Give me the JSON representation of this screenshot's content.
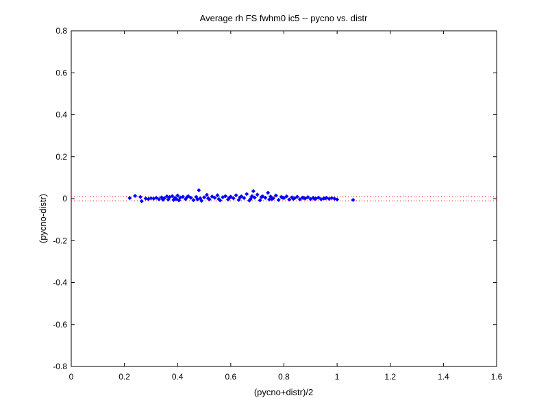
{
  "chart_data": {
    "type": "scatter",
    "title": "Average rh FS fwhm0 ic5 -- pycno vs. distr",
    "xlabel": "(pycno+distr)/2",
    "ylabel": "(pycno-distr)",
    "xlim": [
      0,
      1.6
    ],
    "ylim": [
      -0.8,
      0.8
    ],
    "xticks": [
      0,
      0.2,
      0.4,
      0.6,
      0.8,
      1,
      1.2,
      1.4,
      1.6
    ],
    "xtick_labels": [
      "0",
      "0.2",
      "0.4",
      "0.6",
      "0.8",
      "1",
      "1.2",
      "1.4",
      "1.6"
    ],
    "yticks": [
      -0.8,
      -0.6,
      -0.4,
      -0.2,
      0,
      0.2,
      0.4,
      0.6,
      0.8
    ],
    "ytick_labels": [
      "-0.8",
      "-0.6",
      "-0.4",
      "-0.2",
      "0",
      "0.2",
      "0.4",
      "0.6",
      "0.8"
    ],
    "grid": false,
    "reference_lines": [
      {
        "y": 0.01,
        "style": "dotted",
        "color": "#ff0000"
      },
      {
        "y": -0.01,
        "style": "dotted",
        "color": "#ff0000"
      }
    ],
    "series": [
      {
        "color": "#0000ff",
        "marker": "diamond",
        "points": [
          [
            0.22,
            0.003
          ],
          [
            0.24,
            0.013
          ],
          [
            0.26,
            0.008
          ],
          [
            0.265,
            -0.012
          ],
          [
            0.28,
            0.001
          ],
          [
            0.29,
            -0.002
          ],
          [
            0.3,
            0.002
          ],
          [
            0.31,
            0.0
          ],
          [
            0.32,
            0.004
          ],
          [
            0.33,
            -0.003
          ],
          [
            0.34,
            0.006
          ],
          [
            0.35,
            0.002
          ],
          [
            0.36,
            0.011
          ],
          [
            0.365,
            -0.004
          ],
          [
            0.37,
            0.007
          ],
          [
            0.38,
            0.012
          ],
          [
            0.385,
            -0.006
          ],
          [
            0.39,
            0.003
          ],
          [
            0.4,
            0.015
          ],
          [
            0.405,
            -0.008
          ],
          [
            0.41,
            0.005
          ],
          [
            0.42,
            0.009
          ],
          [
            0.43,
            -0.002
          ],
          [
            0.44,
            0.012
          ],
          [
            0.45,
            0.004
          ],
          [
            0.46,
            -0.007
          ],
          [
            0.47,
            0.008
          ],
          [
            0.48,
            0.04
          ],
          [
            0.485,
            0.002
          ],
          [
            0.49,
            -0.01
          ],
          [
            0.5,
            0.006
          ],
          [
            0.51,
            0.018
          ],
          [
            0.52,
            -0.003
          ],
          [
            0.53,
            0.01
          ],
          [
            0.54,
            0.004
          ],
          [
            0.55,
            0.016
          ],
          [
            0.56,
            -0.008
          ],
          [
            0.57,
            0.007
          ],
          [
            0.58,
            0.012
          ],
          [
            0.59,
            -0.004
          ],
          [
            0.6,
            0.009
          ],
          [
            0.61,
            0.002
          ],
          [
            0.62,
            0.016
          ],
          [
            0.63,
            -0.006
          ],
          [
            0.64,
            0.011
          ],
          [
            0.65,
            0.003
          ],
          [
            0.66,
            0.022
          ],
          [
            0.67,
            -0.009
          ],
          [
            0.68,
            0.012
          ],
          [
            0.685,
            0.036
          ],
          [
            0.69,
            0.005
          ],
          [
            0.7,
            0.019
          ],
          [
            0.71,
            -0.008
          ],
          [
            0.72,
            0.011
          ],
          [
            0.73,
            0.004
          ],
          [
            0.74,
            0.028
          ],
          [
            0.745,
            -0.004
          ],
          [
            0.75,
            0.01
          ],
          [
            0.76,
            0.002
          ],
          [
            0.77,
            0.015
          ],
          [
            0.78,
            -0.006
          ],
          [
            0.79,
            0.008
          ],
          [
            0.8,
            0.003
          ],
          [
            0.81,
            0.011
          ],
          [
            0.82,
            -0.004
          ],
          [
            0.83,
            0.006
          ],
          [
            0.84,
            0.002
          ],
          [
            0.85,
            0.009
          ],
          [
            0.86,
            -0.003
          ],
          [
            0.87,
            0.005
          ],
          [
            0.88,
            0.001
          ],
          [
            0.89,
            0.007
          ],
          [
            0.9,
            -0.002
          ],
          [
            0.91,
            0.004
          ],
          [
            0.92,
            0.0
          ],
          [
            0.93,
            0.005
          ],
          [
            0.94,
            -0.003
          ],
          [
            0.95,
            0.002
          ],
          [
            0.96,
            0.004
          ],
          [
            0.97,
            -0.001
          ],
          [
            0.98,
            0.003
          ],
          [
            0.99,
            0.0
          ],
          [
            1.0,
            -0.004
          ],
          [
            1.06,
            -0.006
          ],
          [
            0.345,
            -0.005
          ],
          [
            0.395,
            -0.001
          ],
          [
            0.435,
            0.006
          ],
          [
            0.475,
            -0.004
          ],
          [
            0.515,
            0.001
          ],
          [
            0.555,
            -0.002
          ],
          [
            0.595,
            0.005
          ],
          [
            0.635,
            0.006
          ],
          [
            0.675,
            -0.001
          ],
          [
            0.715,
            0.007
          ],
          [
            0.755,
            -0.002
          ],
          [
            0.795,
            0.005
          ],
          [
            0.835,
            -0.001
          ],
          [
            0.875,
            0.003
          ],
          [
            0.915,
            -0.001
          ],
          [
            0.955,
            0.001
          ]
        ]
      }
    ]
  }
}
